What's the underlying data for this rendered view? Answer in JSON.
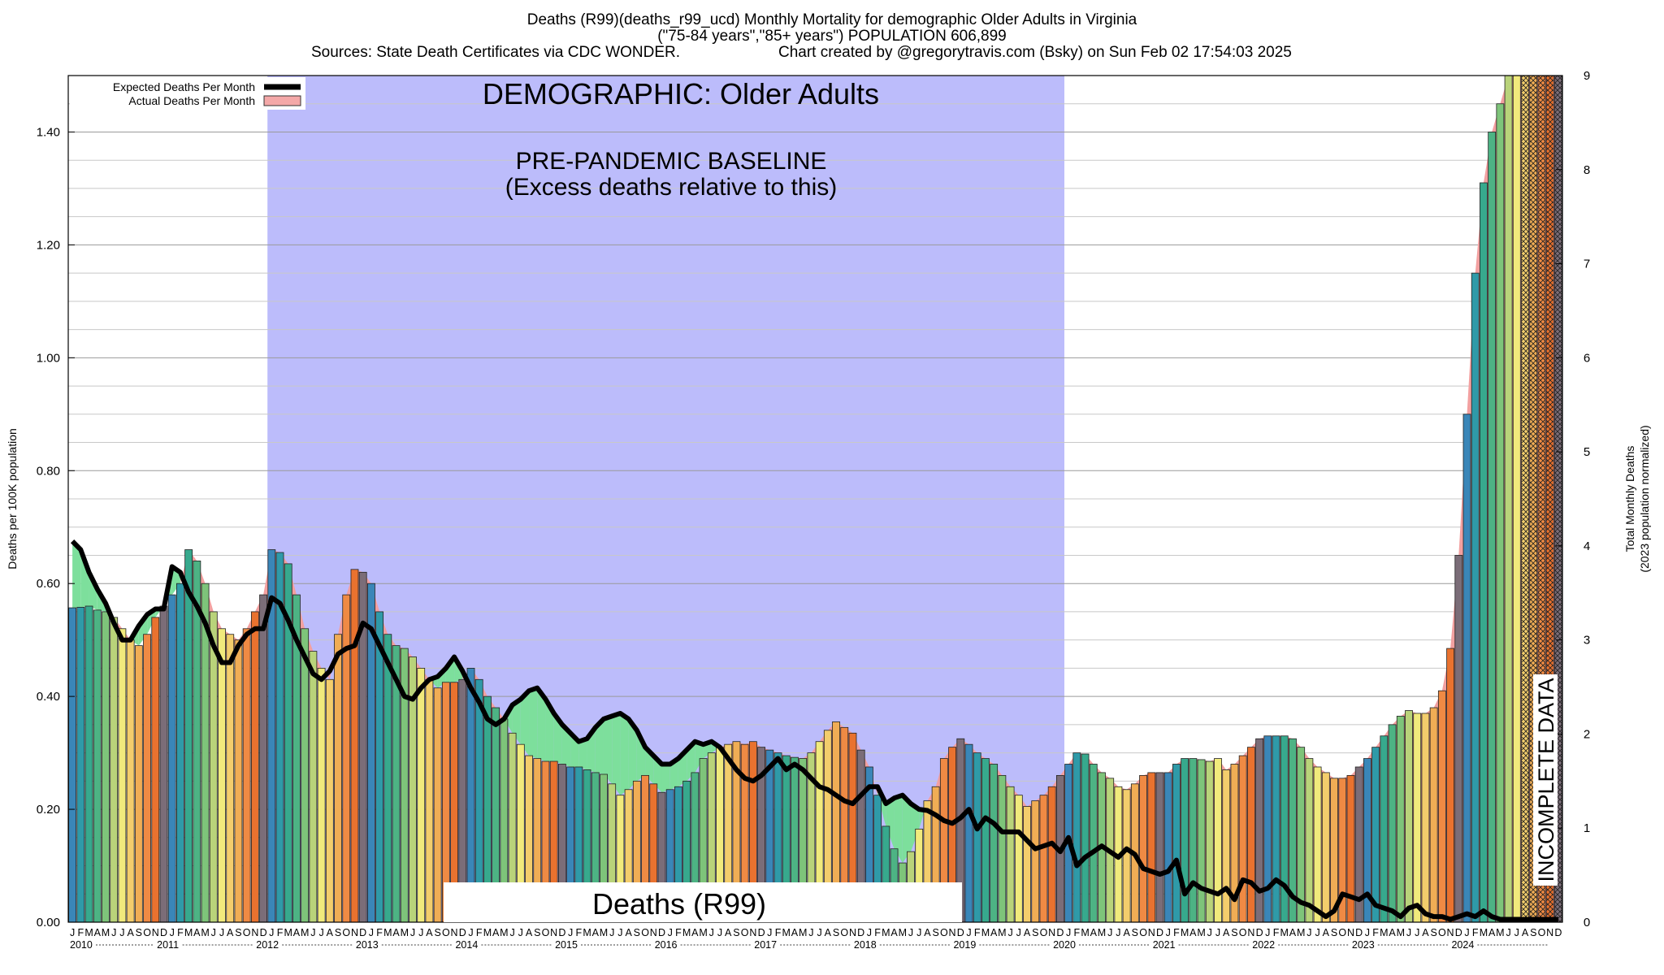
{
  "header": {
    "title_line1": "Deaths (R99)(deaths_r99_ucd) Monthly Mortality for demographic Older Adults in Virginia",
    "title_line2": "(\"75-84 years\",\"85+ years\") POPULATION 606,899",
    "sources": "Sources: State Death Certificates via CDC WONDER.",
    "credit": "Chart created by @gregorytravis.com (Bsky) on Sun Feb 02 17:54:03 2025"
  },
  "colors": {
    "baseline_region": "#bcbcfb",
    "expected_line": "#000000",
    "actual_legend": "#f4a8a8",
    "excess_fill_green": "#7ddf9c",
    "excess_fill_red": "#f2a0a0",
    "month_palette": [
      "#3a86b8",
      "#2f9aa8",
      "#37a98d",
      "#4db384",
      "#7ec47a",
      "#b9d37a",
      "#f1ea7c",
      "#f3cd6c",
      "#f0ad55",
      "#ef8a44",
      "#e9722f",
      "#7b6d78"
    ],
    "hatch": "#b8b8b8"
  },
  "chart_data": {
    "type": "bar",
    "title": "Deaths (R99)(deaths_r99_ucd) Monthly Mortality for demographic Older Adults in Virginia",
    "ylabel": "Deaths per 100K population",
    "y2label_line1": "Total Monthly Deaths",
    "y2label_line2": "(2023 population normalized)",
    "ylim": [
      0,
      1.5
    ],
    "y2lim": [
      0,
      9
    ],
    "yticks": [
      "0.00",
      "0.20",
      "0.40",
      "0.60",
      "0.80",
      "1.00",
      "1.20",
      "1.40"
    ],
    "yticks_values": [
      0,
      0.2,
      0.4,
      0.6,
      0.8,
      1.0,
      1.2,
      1.4
    ],
    "y2ticks": [
      "0",
      "1",
      "2",
      "3",
      "4",
      "5",
      "6",
      "7",
      "8",
      "9"
    ],
    "month_letters": [
      "J",
      "F",
      "M",
      "A",
      "M",
      "J",
      "J",
      "A",
      "S",
      "O",
      "N",
      "D"
    ],
    "years": [
      "2010",
      "2011",
      "2012",
      "2013",
      "2014",
      "2015",
      "2016",
      "2017",
      "2018",
      "2019",
      "2020",
      "2021",
      "2022",
      "2023",
      "2024"
    ],
    "grid": true,
    "legend_position": "top-left",
    "legend": [
      "Expected Deaths Per Month",
      "Actual Deaths Per Month"
    ],
    "annotations": {
      "demographic": "DEMOGRAPHIC: Older Adults",
      "baseline_line1": "PRE-PANDEMIC BASELINE",
      "baseline_line2": "(Excess deaths relative to this)",
      "cause": "Deaths (R99)",
      "incomplete": "INCOMPLETE DATA"
    },
    "baseline_period": [
      "2012-01",
      "2019-12"
    ],
    "incomplete_from": "2024-08",
    "series": [
      {
        "name": "Actual Deaths Per Month",
        "values": [
          0.557,
          0.558,
          0.56,
          0.553,
          0.55,
          0.54,
          0.52,
          0.5,
          0.49,
          0.51,
          0.54,
          0.56,
          0.58,
          0.6,
          0.66,
          0.64,
          0.6,
          0.55,
          0.52,
          0.51,
          0.5,
          0.52,
          0.55,
          0.58,
          0.66,
          0.655,
          0.635,
          0.58,
          0.52,
          0.48,
          0.45,
          0.43,
          0.51,
          0.58,
          0.625,
          0.62,
          0.6,
          0.55,
          0.51,
          0.49,
          0.485,
          0.47,
          0.45,
          0.43,
          0.415,
          0.425,
          0.425,
          0.43,
          0.45,
          0.43,
          0.4,
          0.38,
          0.36,
          0.335,
          0.315,
          0.295,
          0.29,
          0.285,
          0.285,
          0.28,
          0.275,
          0.275,
          0.27,
          0.265,
          0.262,
          0.245,
          0.225,
          0.235,
          0.25,
          0.26,
          0.245,
          0.23,
          0.235,
          0.24,
          0.25,
          0.265,
          0.29,
          0.3,
          0.31,
          0.315,
          0.32,
          0.315,
          0.32,
          0.31,
          0.305,
          0.3,
          0.295,
          0.292,
          0.29,
          0.3,
          0.32,
          0.34,
          0.355,
          0.345,
          0.335,
          0.305,
          0.275,
          0.225,
          0.17,
          0.13,
          0.105,
          0.125,
          0.165,
          0.215,
          0.24,
          0.29,
          0.31,
          0.325,
          0.315,
          0.3,
          0.29,
          0.28,
          0.26,
          0.24,
          0.225,
          0.205,
          0.215,
          0.225,
          0.24,
          0.26,
          0.28,
          0.3,
          0.298,
          0.28,
          0.265,
          0.255,
          0.24,
          0.235,
          0.245,
          0.26,
          0.265,
          0.265,
          0.265,
          0.28,
          0.29,
          0.29,
          0.288,
          0.285,
          0.29,
          0.27,
          0.28,
          0.295,
          0.31,
          0.325,
          0.33,
          0.33,
          0.33,
          0.325,
          0.31,
          0.29,
          0.275,
          0.265,
          0.255,
          0.255,
          0.26,
          0.275,
          0.29,
          0.31,
          0.33,
          0.35,
          0.365,
          0.375,
          0.37,
          0.37,
          0.38,
          0.41,
          0.485,
          0.65,
          0.9,
          1.15,
          1.31,
          1.4,
          1.45,
          1.5,
          1.5,
          1.5,
          1.5,
          1.5,
          1.5,
          1.5
        ]
      },
      {
        "name": "Expected Deaths Per Month",
        "values": [
          0.675,
          0.66,
          0.62,
          0.59,
          0.565,
          0.53,
          0.5,
          0.5,
          0.525,
          0.545,
          0.555,
          0.555,
          0.63,
          0.62,
          0.585,
          0.56,
          0.53,
          0.49,
          0.46,
          0.46,
          0.49,
          0.51,
          0.52,
          0.52,
          0.575,
          0.565,
          0.535,
          0.5,
          0.47,
          0.44,
          0.43,
          0.445,
          0.475,
          0.485,
          0.49,
          0.53,
          0.52,
          0.49,
          0.46,
          0.43,
          0.4,
          0.395,
          0.415,
          0.43,
          0.435,
          0.45,
          0.47,
          0.445,
          0.415,
          0.39,
          0.36,
          0.35,
          0.36,
          0.385,
          0.395,
          0.41,
          0.415,
          0.395,
          0.37,
          0.35,
          0.335,
          0.32,
          0.325,
          0.345,
          0.36,
          0.365,
          0.37,
          0.36,
          0.34,
          0.31,
          0.295,
          0.28,
          0.28,
          0.29,
          0.305,
          0.32,
          0.315,
          0.32,
          0.31,
          0.29,
          0.27,
          0.255,
          0.25,
          0.26,
          0.275,
          0.29,
          0.27,
          0.28,
          0.27,
          0.255,
          0.24,
          0.235,
          0.225,
          0.215,
          0.21,
          0.225,
          0.24,
          0.24,
          0.21,
          0.22,
          0.225,
          0.21,
          0.2,
          0.198,
          0.19,
          0.18,
          0.175,
          0.185,
          0.2,
          0.165,
          0.185,
          0.175,
          0.16,
          0.16,
          0.16,
          0.145,
          0.13,
          0.135,
          0.14,
          0.125,
          0.15,
          0.1,
          0.115,
          0.125,
          0.135,
          0.125,
          0.115,
          0.13,
          0.12,
          0.095,
          0.09,
          0.085,
          0.09,
          0.11,
          0.05,
          0.07,
          0.06,
          0.055,
          0.05,
          0.06,
          0.04,
          0.075,
          0.07,
          0.055,
          0.06,
          0.075,
          0.065,
          0.045,
          0.035,
          0.03,
          0.02,
          0.01,
          0.02,
          0.05,
          0.045,
          0.04,
          0.05,
          0.03,
          0.025,
          0.02,
          0.01,
          0.025,
          0.03,
          0.015,
          0.01,
          0.01,
          0.005,
          0.01,
          0.015,
          0.01,
          0.02,
          0.01,
          0.005,
          0.005,
          0.005,
          0.005,
          0.005,
          0.005,
          0.005,
          0.005
        ]
      }
    ]
  }
}
